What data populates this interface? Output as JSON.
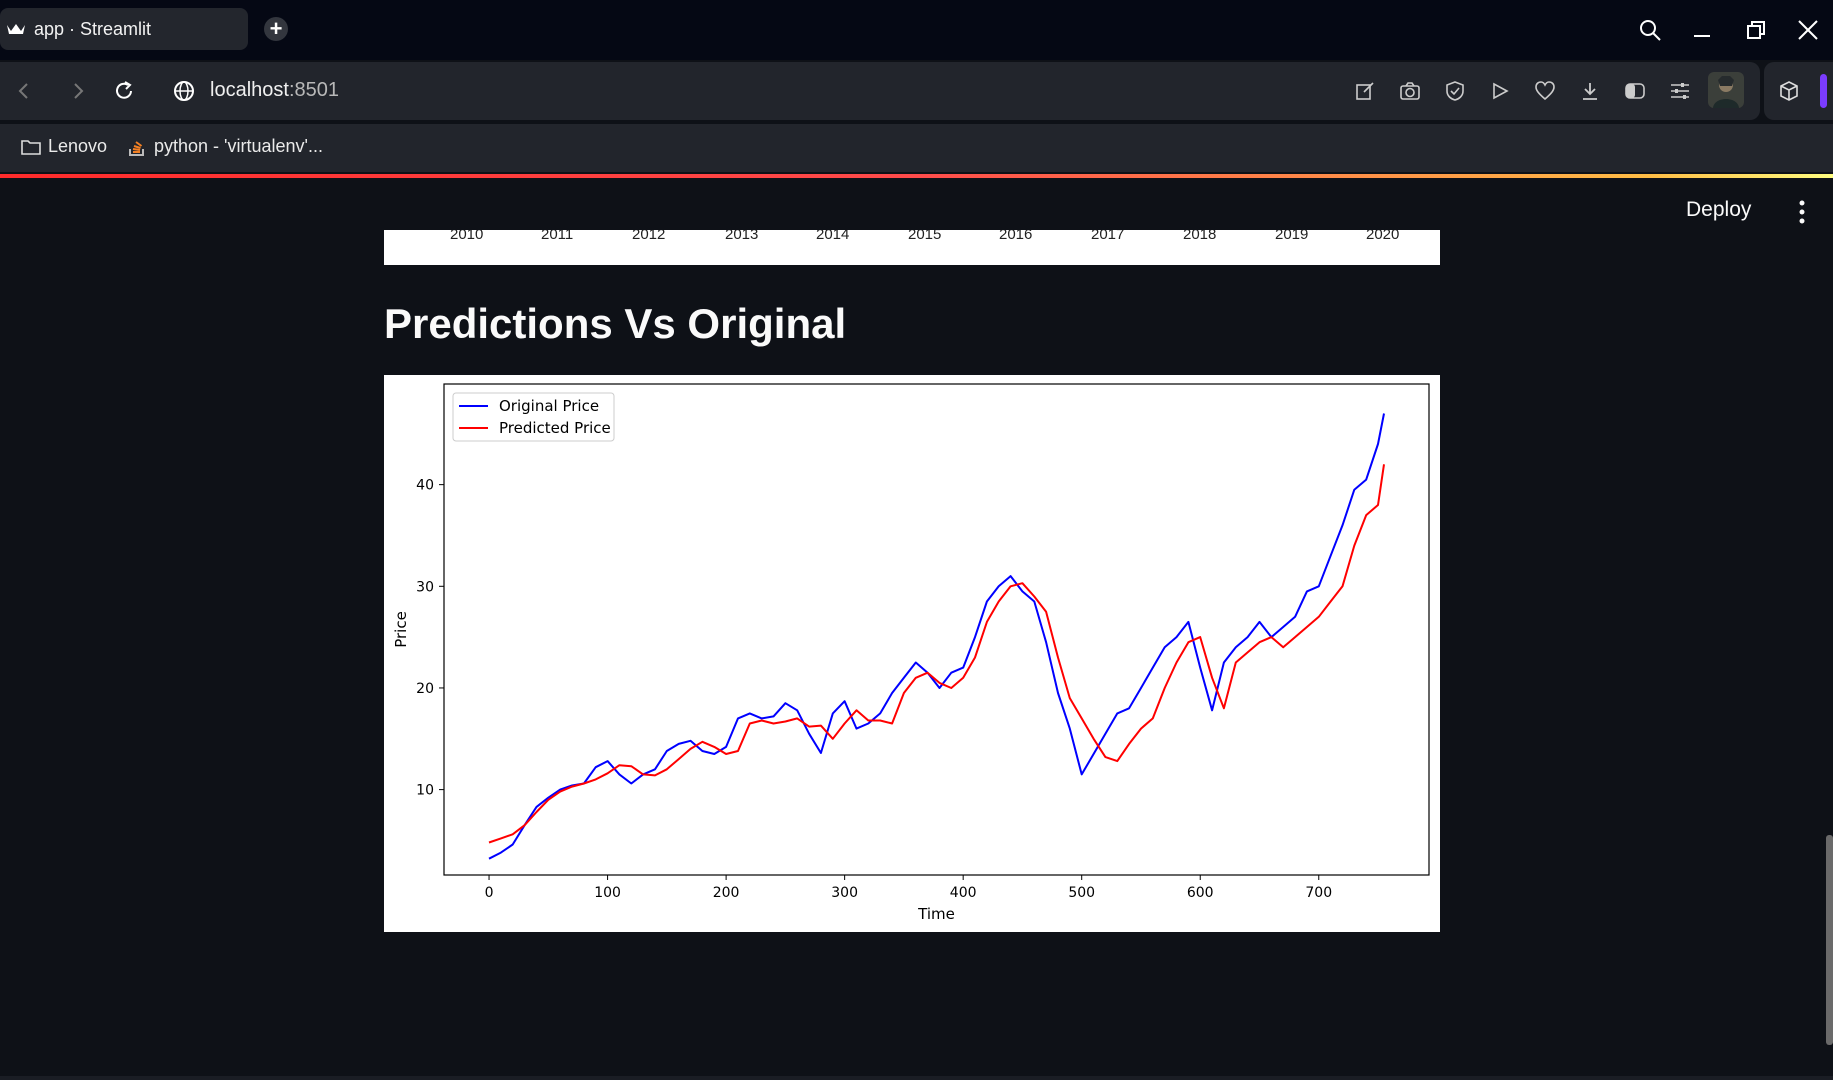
{
  "browser": {
    "tab_title": "app · Streamlit",
    "url_host": "localhost",
    "url_port": ":8501",
    "bookmarks": [
      "Lenovo",
      "python - 'virtualenv'..."
    ]
  },
  "app": {
    "deploy_label": "Deploy",
    "section_title": "Predictions Vs Original",
    "previous_chart_tick_labels": [
      "2010",
      "2011",
      "2012",
      "2013",
      "2014",
      "2015",
      "2016",
      "2017",
      "2018",
      "2019",
      "2020"
    ]
  },
  "colors": {
    "accent_gradient": [
      "#ff2b2b",
      "#ffbd45",
      "#fffd80"
    ],
    "background": "#0e1117",
    "original": "#0000ff",
    "predicted": "#ff0000"
  },
  "chart_data": {
    "type": "line",
    "xlabel": "Time",
    "ylabel": "Price",
    "xlim": [
      -38,
      793
    ],
    "ylim": [
      1.6,
      49.9
    ],
    "xticks": [
      0,
      100,
      200,
      300,
      400,
      500,
      600,
      700
    ],
    "yticks": [
      10,
      20,
      30,
      40
    ],
    "legend_position": "top-left",
    "series": [
      {
        "name": "Original Price",
        "color": "#0000ff",
        "x": [
          0,
          10,
          20,
          30,
          40,
          50,
          60,
          70,
          80,
          90,
          100,
          110,
          120,
          130,
          140,
          150,
          160,
          170,
          180,
          190,
          200,
          210,
          220,
          230,
          240,
          250,
          260,
          270,
          280,
          290,
          300,
          310,
          320,
          330,
          340,
          350,
          360,
          370,
          380,
          390,
          400,
          410,
          420,
          430,
          440,
          450,
          460,
          470,
          480,
          490,
          500,
          510,
          520,
          530,
          540,
          550,
          560,
          570,
          580,
          590,
          600,
          610,
          620,
          630,
          640,
          650,
          660,
          670,
          680,
          690,
          700,
          710,
          720,
          730,
          740,
          750,
          755
        ],
        "y": [
          3.2,
          3.8,
          4.6,
          6.5,
          8.3,
          9.2,
          10.0,
          10.4,
          10.6,
          12.2,
          12.8,
          11.5,
          10.6,
          11.5,
          12.0,
          13.8,
          14.5,
          14.8,
          13.8,
          13.5,
          14.2,
          17.0,
          17.5,
          17.0,
          17.2,
          18.5,
          17.8,
          15.5,
          13.6,
          17.5,
          18.7,
          16.0,
          16.5,
          17.5,
          19.5,
          21.0,
          22.5,
          21.5,
          20.0,
          21.5,
          22.0,
          25.0,
          28.5,
          30.0,
          31.0,
          29.5,
          28.5,
          24.5,
          19.5,
          16.0,
          11.5,
          13.5,
          15.5,
          17.5,
          18.0,
          20.0,
          22.0,
          24.0,
          25.0,
          26.5,
          22.0,
          17.8,
          22.5,
          24.0,
          25.0,
          26.5,
          25.0,
          26.0,
          27.0,
          29.5,
          30.0,
          33.0,
          36.0,
          39.5,
          40.5,
          44.0,
          47.0
        ]
      },
      {
        "name": "Predicted Price",
        "color": "#ff0000",
        "x": [
          0,
          10,
          20,
          30,
          40,
          50,
          60,
          70,
          80,
          90,
          100,
          110,
          120,
          130,
          140,
          150,
          160,
          170,
          180,
          190,
          200,
          210,
          220,
          230,
          240,
          250,
          260,
          270,
          280,
          290,
          300,
          310,
          320,
          330,
          340,
          350,
          360,
          370,
          380,
          390,
          400,
          410,
          420,
          430,
          440,
          450,
          460,
          470,
          480,
          490,
          500,
          510,
          520,
          530,
          540,
          550,
          560,
          570,
          580,
          590,
          600,
          610,
          620,
          630,
          640,
          650,
          660,
          670,
          680,
          690,
          700,
          710,
          720,
          730,
          740,
          750,
          755
        ],
        "y": [
          4.8,
          5.2,
          5.6,
          6.5,
          7.8,
          9.0,
          9.8,
          10.3,
          10.6,
          11.0,
          11.6,
          12.4,
          12.3,
          11.5,
          11.4,
          12.0,
          13.0,
          14.0,
          14.7,
          14.2,
          13.5,
          13.8,
          16.5,
          16.8,
          16.5,
          16.7,
          17.0,
          16.2,
          16.3,
          15.0,
          16.5,
          17.8,
          16.8,
          16.8,
          16.5,
          19.5,
          21.0,
          21.5,
          20.5,
          20.0,
          21.0,
          23.0,
          26.5,
          28.5,
          30.0,
          30.3,
          29.0,
          27.5,
          23.0,
          19.0,
          17.0,
          15.0,
          13.2,
          12.8,
          14.5,
          16.0,
          17.0,
          20.0,
          22.5,
          24.5,
          25.0,
          21.0,
          18.0,
          22.5,
          23.5,
          24.5,
          25.0,
          24.0,
          25.0,
          26.0,
          27.0,
          28.5,
          30.0,
          34.0,
          37.0,
          38.0,
          42.0
        ]
      }
    ]
  }
}
